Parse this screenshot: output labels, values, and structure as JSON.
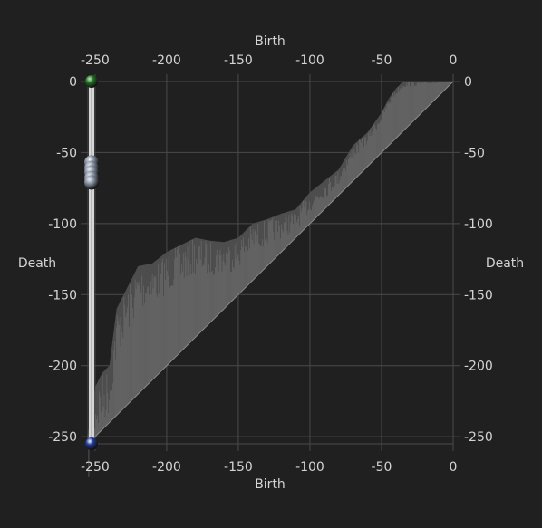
{
  "chart_data": {
    "type": "persistence-diagram",
    "xlabel": "Birth",
    "ylabel": "Death",
    "xlim": [
      -255,
      0
    ],
    "ylim": [
      -255,
      0
    ],
    "x_ticks": [
      -250,
      -200,
      -150,
      -100,
      -50,
      0
    ],
    "y_ticks": [
      0,
      -50,
      -100,
      -150,
      -200,
      -250
    ],
    "grid": true,
    "diagonal": {
      "from": [
        -255,
        -255
      ],
      "to": [
        0,
        0
      ]
    },
    "persistence_envelope": [
      {
        "x": -255,
        "y": -248
      },
      {
        "x": -250,
        "y": -215
      },
      {
        "x": -245,
        "y": -205
      },
      {
        "x": -240,
        "y": -200
      },
      {
        "x": -235,
        "y": -160
      },
      {
        "x": -230,
        "y": -150
      },
      {
        "x": -225,
        "y": -140
      },
      {
        "x": -220,
        "y": -130
      },
      {
        "x": -210,
        "y": -128
      },
      {
        "x": -200,
        "y": -120
      },
      {
        "x": -190,
        "y": -115
      },
      {
        "x": -180,
        "y": -110
      },
      {
        "x": -170,
        "y": -112
      },
      {
        "x": -160,
        "y": -113
      },
      {
        "x": -150,
        "y": -110
      },
      {
        "x": -140,
        "y": -100
      },
      {
        "x": -130,
        "y": -97
      },
      {
        "x": -120,
        "y": -93
      },
      {
        "x": -110,
        "y": -90
      },
      {
        "x": -100,
        "y": -78
      },
      {
        "x": -90,
        "y": -70
      },
      {
        "x": -80,
        "y": -62
      },
      {
        "x": -70,
        "y": -45
      },
      {
        "x": -60,
        "y": -36
      },
      {
        "x": -50,
        "y": -22
      },
      {
        "x": -45,
        "y": -12
      },
      {
        "x": -40,
        "y": -5
      },
      {
        "x": -35,
        "y": 0
      },
      {
        "x": -20,
        "y": 0
      },
      {
        "x": 0,
        "y": 0
      }
    ],
    "points": [
      {
        "x": -255,
        "y": 0,
        "color": "#1e7a1e",
        "kind": "essential"
      },
      {
        "x": -255,
        "y": -255,
        "color": "#1f3a9e",
        "kind": "essential"
      },
      {
        "x": -255,
        "y": -57,
        "color": "#8a96a8"
      },
      {
        "x": -255,
        "y": -61,
        "color": "#8a96a8"
      },
      {
        "x": -255,
        "y": -64,
        "color": "#8a96a8"
      },
      {
        "x": -255,
        "y": -68,
        "color": "#8a96a8"
      },
      {
        "x": -255,
        "y": -71,
        "color": "#8a96a8"
      }
    ]
  },
  "colors": {
    "background": "#202020",
    "grid": "#4a4a4a",
    "diagonal_fill": "#555555",
    "spikes": "#6a6a6a",
    "text": "#d4d4d4",
    "persistence_bar": "#d6d6d6"
  }
}
